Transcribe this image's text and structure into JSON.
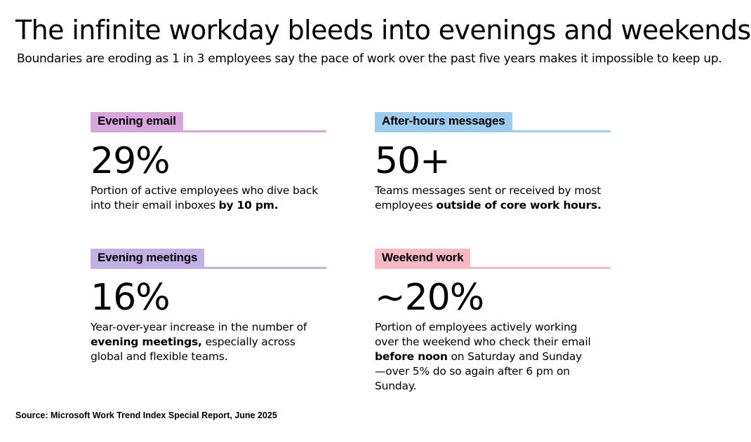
{
  "header": {
    "title": "The infinite workday bleeds into evenings and weekends",
    "subtitle": "Boundaries are eroding as 1 in 3 employees say the pace of work over the past five years makes it impossible to keep up."
  },
  "cards": [
    {
      "tag": "Evening email",
      "tag_color": "#d9a6dc",
      "stat": "29%",
      "desc_parts": [
        {
          "text": "Portion of active employees who dive back into their email inboxes ",
          "bold": false
        },
        {
          "text": "by 10 pm.",
          "bold": true
        }
      ]
    },
    {
      "tag": "After-hours messages",
      "tag_color": "#9ccdee",
      "stat": "50+",
      "desc_parts": [
        {
          "text": "Teams messages sent or received by most employees ",
          "bold": false
        },
        {
          "text": "outside of core work hours.",
          "bold": true
        }
      ]
    },
    {
      "tag": "Evening meetings",
      "tag_color": "#c1b0e6",
      "stat": "16%",
      "desc_parts": [
        {
          "text": "Year-over-year increase in the number of ",
          "bold": false
        },
        {
          "text": "evening meetings,",
          "bold": true
        },
        {
          "text": " especially across global and flexible teams.",
          "bold": false
        }
      ]
    },
    {
      "tag": "Weekend work",
      "tag_color": "#f5b8c4",
      "stat": "~20%",
      "desc_parts": [
        {
          "text": "Portion of employees actively working over the weekend who check their email ",
          "bold": false
        },
        {
          "text": "before noon",
          "bold": true
        },
        {
          "text": " on Saturday and Sunday—over 5% do so again after 6 pm on Sunday.",
          "bold": false
        }
      ]
    }
  ],
  "footer": {
    "source": "Source: Microsoft Work Trend Index Special Report, June 2025"
  }
}
